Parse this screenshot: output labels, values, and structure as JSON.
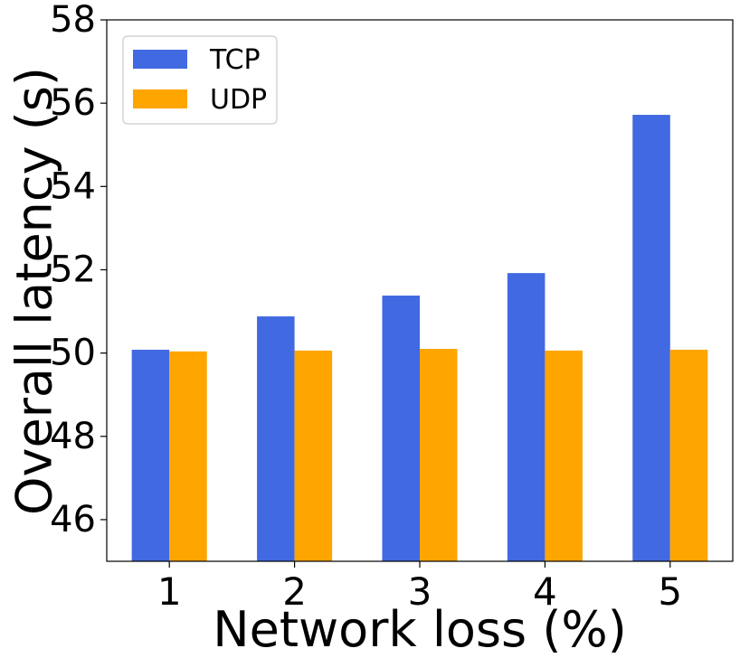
{
  "chart_data": {
    "type": "bar",
    "categories": [
      "1",
      "2",
      "3",
      "4",
      "5"
    ],
    "series": [
      {
        "name": "TCP",
        "color": "#4169E1",
        "values": [
          50.08,
          50.88,
          51.38,
          51.92,
          55.72
        ]
      },
      {
        "name": "UDP",
        "color": "#FFA500",
        "values": [
          50.04,
          50.06,
          50.1,
          50.06,
          50.08
        ]
      }
    ],
    "xlabel": "Network loss (%)",
    "ylabel": "Overall latency (s)",
    "ylim": [
      45,
      58
    ],
    "yticks": [
      46,
      48,
      50,
      52,
      54,
      56,
      58
    ],
    "grid": false,
    "legend_position": "top-left"
  }
}
